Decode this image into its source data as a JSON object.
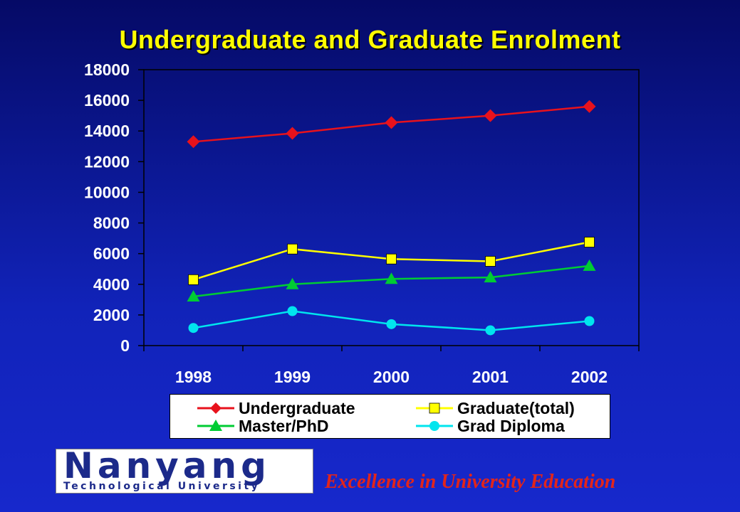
{
  "slide": {
    "slogan": "Excellence in University Education"
  },
  "logo": {
    "name": "Nanyang",
    "subtitle": "Technological University"
  },
  "chart_data": {
    "type": "line",
    "title": "Undergraduate and Graduate Enrolment",
    "xlabel": "",
    "ylabel": "",
    "categories": [
      "1998",
      "1999",
      "2000",
      "2001",
      "2002"
    ],
    "ylim": [
      0,
      18000
    ],
    "yticks": [
      0,
      2000,
      4000,
      6000,
      8000,
      10000,
      12000,
      14000,
      16000,
      18000
    ],
    "ytick_labels": [
      "0",
      "2000",
      "4000",
      "6000",
      "8000",
      "10000",
      "12000",
      "14000",
      "16000",
      "18000"
    ],
    "grid": false,
    "legend_position": "bottom",
    "series": [
      {
        "name": "Undergraduate",
        "values": [
          13300,
          13850,
          14550,
          15000,
          15600
        ],
        "color": "#e8121c",
        "marker": "diamond"
      },
      {
        "name": "Graduate(total)",
        "values": [
          4300,
          6300,
          5650,
          5500,
          6750
        ],
        "color": "#ffff00",
        "marker": "square"
      },
      {
        "name": "Master/PhD",
        "values": [
          3200,
          4000,
          4350,
          4450,
          5200
        ],
        "color": "#00cc33",
        "marker": "triangle"
      },
      {
        "name": "Grad Diploma",
        "values": [
          1150,
          2250,
          1400,
          1000,
          1600
        ],
        "color": "#00e5ee",
        "marker": "circle"
      }
    ]
  }
}
